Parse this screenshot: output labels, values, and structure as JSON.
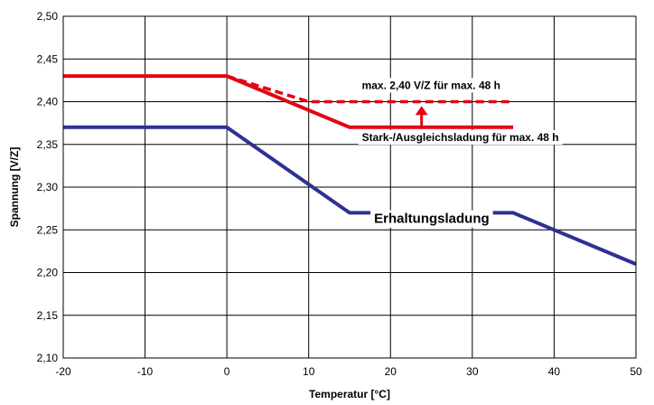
{
  "chart_data": {
    "type": "line",
    "title": "",
    "xlabel": "Temperatur [°C]",
    "ylabel": "Spannung [V/Z]",
    "xlim": [
      -20,
      50
    ],
    "ylim": [
      2.1,
      2.5
    ],
    "x_ticks": [
      -20,
      -10,
      0,
      10,
      20,
      30,
      40,
      50
    ],
    "y_ticks": [
      2.1,
      2.15,
      2.2,
      2.25,
      2.3,
      2.35,
      2.4,
      2.45,
      2.5
    ],
    "x_tick_labels": [
      "-20",
      "-10",
      "0",
      "10",
      "20",
      "30",
      "40",
      "50"
    ],
    "y_tick_labels": [
      "2,10",
      "2,15",
      "2,20",
      "2,25",
      "2,30",
      "2,35",
      "2,40",
      "2,45",
      "2,50"
    ],
    "grid": true,
    "series": [
      {
        "color": "#e30613",
        "style": "solid",
        "x": [
          -20,
          0,
          15,
          35
        ],
        "y": [
          2.43,
          2.43,
          2.37,
          2.37
        ]
      },
      {
        "color": "#e30613",
        "style": "dashed",
        "x": [
          0,
          10,
          35
        ],
        "y": [
          2.43,
          2.4,
          2.4
        ]
      },
      {
        "color": "#2e3192",
        "style": "solid",
        "x": [
          -20,
          0,
          15,
          35,
          50
        ],
        "y": [
          2.37,
          2.37,
          2.27,
          2.27,
          2.21
        ]
      }
    ],
    "annotations": [
      {
        "text": "max. 2,40 V/Z für max. 48 h",
        "x": 16.5,
        "y": 2.415
      },
      {
        "text": "Stark-/Ausgleichsladung für max. 48 h",
        "x": 16.5,
        "y": 2.354
      },
      {
        "text": "Erhaltungsladung",
        "x": 18,
        "y": 2.258
      }
    ],
    "arrow": {
      "color": "#e30613",
      "x": 23.8,
      "y_from": 2.37,
      "y_to": 2.395
    }
  }
}
